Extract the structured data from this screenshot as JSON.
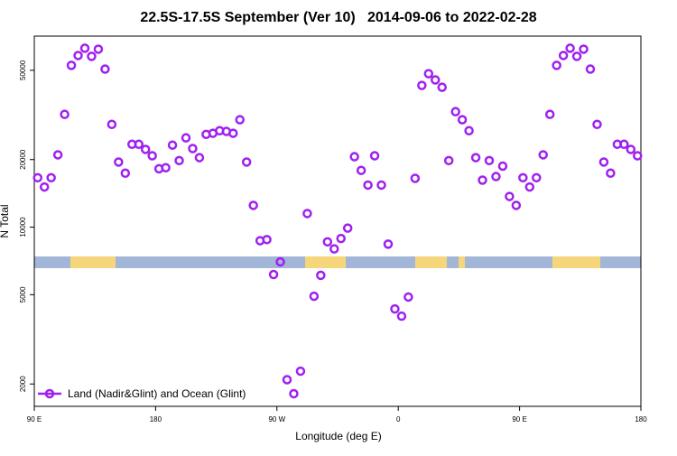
{
  "chart_data": {
    "type": "scatter",
    "title": "22.5S-17.5S September (Ver 10)   2014-09-06 to 2022-02-28",
    "x_label": "Longitude (deg E)",
    "y_label": "N Total",
    "log_y": true,
    "legend_position": "bottom-left",
    "xlim": [
      90,
      540
    ],
    "xticks": [
      {
        "value": 90,
        "label": "90 E"
      },
      {
        "value": 180,
        "label": "180"
      },
      {
        "value": 270,
        "label": "90 W"
      },
      {
        "value": 360,
        "label": "0"
      },
      {
        "value": 450,
        "label": "90 E"
      },
      {
        "value": 540,
        "label": "180"
      }
    ],
    "ylim": [
      1590,
      71000
    ],
    "yticks": [
      2000,
      5000,
      10000,
      20000,
      50000
    ],
    "series": [
      {
        "name": "Land (Nadir&Glint) and Ocean (Glint)",
        "color": "#a020f0",
        "x": [
          92.5,
          97.5,
          102.5,
          107.5,
          112.5,
          117.5,
          122.5,
          127.5,
          132.5,
          137.5,
          142.5,
          147.5,
          152.5,
          157.5,
          162.5,
          167.5,
          172.5,
          177.5,
          182.5,
          187.5,
          192.5,
          197.5,
          202.5,
          207.5,
          212.5,
          217.5,
          222.5,
          227.5,
          232.5,
          237.5,
          242.5,
          247.5,
          252.5,
          257.5,
          262.5,
          267.5,
          272.5,
          277.5,
          282.5,
          287.5,
          292.5,
          297.5,
          302.5,
          307.5,
          312.5,
          317.5,
          322.5,
          327.5,
          332.5,
          337.5,
          342.5,
          347.5,
          352.5,
          357.5,
          362.5,
          367.5,
          372.5,
          377.5,
          382.5,
          387.5,
          392.5,
          397.5,
          402.5,
          407.5,
          412.5,
          417.5,
          422.5,
          427.5,
          432.5,
          437.5,
          442.5,
          447.5,
          452.5,
          457.5,
          462.5,
          467.5,
          472.5,
          477.5,
          482.5,
          487.5,
          492.5,
          497.5,
          502.5,
          507.5,
          512.5,
          517.5,
          522.5,
          527.5,
          532.5,
          537.5
        ],
        "values": [
          16600,
          15100,
          16600,
          21000,
          31800,
          52600,
          58200,
          62700,
          57700,
          62100,
          50600,
          28700,
          19500,
          17400,
          23400,
          23400,
          22200,
          20800,
          18200,
          18400,
          23200,
          19800,
          25000,
          22400,
          20400,
          25900,
          26200,
          26900,
          26700,
          26200,
          30100,
          19500,
          12500,
          8700,
          8800,
          6150,
          7000,
          2090,
          1810,
          2280,
          11500,
          4920,
          6100,
          8600,
          8000,
          8900,
          9900,
          20600,
          17900,
          15400,
          20800,
          15400,
          8400,
          4320,
          4010,
          4880,
          16500,
          42800,
          48300,
          45300,
          42000,
          19800,
          32700,
          30100,
          26900,
          20400,
          16200,
          19800,
          16800,
          18700,
          13700,
          12500,
          16600,
          15100,
          16600,
          21000,
          31800,
          52600,
          58200,
          62700,
          57700,
          62100,
          50600,
          28700,
          19500,
          17400,
          23400,
          23400,
          22200,
          20800
        ]
      }
    ]
  }
}
